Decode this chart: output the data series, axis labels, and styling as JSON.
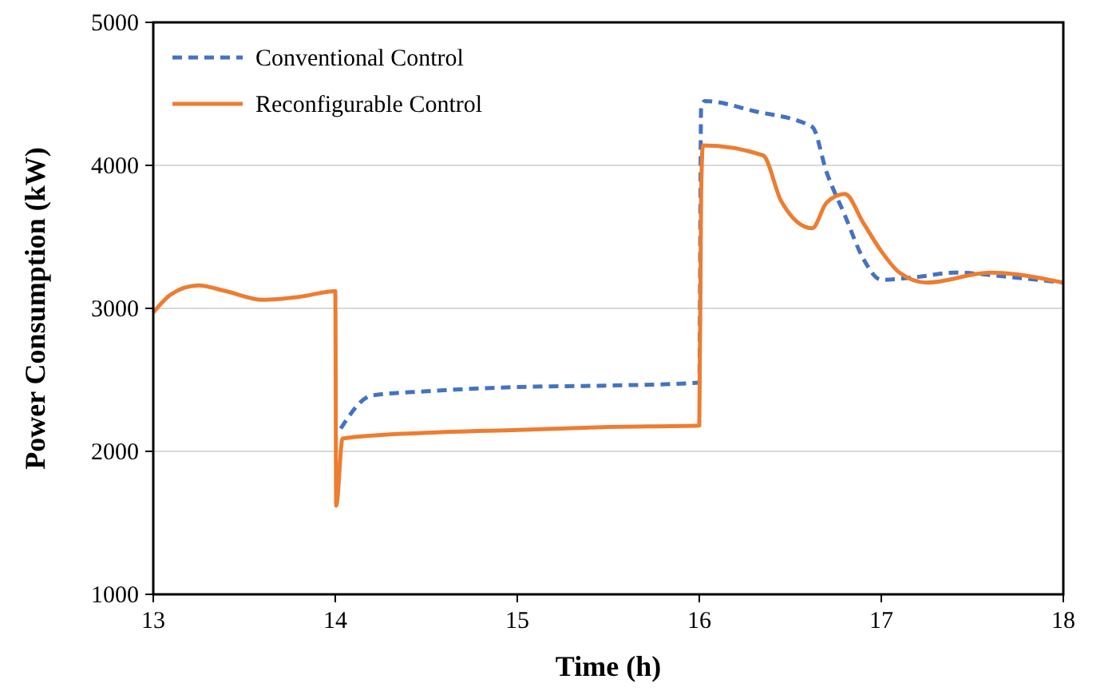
{
  "chart_data": {
    "type": "line",
    "xlabel": "Time (h)",
    "ylabel": "Power Consumption (kW)",
    "xlim": [
      13,
      18
    ],
    "xticks": [
      13,
      14,
      15,
      16,
      17,
      18
    ],
    "ylim": [
      1000,
      5000
    ],
    "yticks": [
      1000,
      2000,
      3000,
      4000,
      5000
    ],
    "grid": "y",
    "legend": "top left",
    "marker": "none",
    "series": [
      {
        "name": "Conventional Control",
        "color": "#4472c4",
        "line_style": "dashed",
        "x": [
          14.03,
          14.2,
          14.5,
          15,
          15.5,
          16,
          16.01,
          16.03,
          16.3,
          16.62,
          16.7,
          16.8,
          16.9,
          17,
          17.2,
          17.4,
          17.7,
          18
        ],
        "values": [
          2160,
          2390,
          2420,
          2450,
          2460,
          2480,
          4400,
          4450,
          4380,
          4270,
          3950,
          3650,
          3350,
          3200,
          3220,
          3250,
          3220,
          3180
        ]
      },
      {
        "name": "Reconfigurable Control",
        "color": "#ed7d31",
        "line_style": "solid",
        "x": [
          13,
          13.1,
          13.25,
          13.4,
          13.6,
          13.8,
          14,
          14.005,
          14.04,
          14.5,
          15,
          15.5,
          16,
          16.01,
          16.02,
          16.35,
          16.45,
          16.62,
          16.7,
          16.8,
          16.9,
          17,
          17.1,
          17.25,
          17.6,
          18
        ],
        "values": [
          2970,
          3100,
          3160,
          3120,
          3060,
          3080,
          3120,
          1620,
          2090,
          2130,
          2150,
          2170,
          2180,
          3800,
          4140,
          4070,
          3750,
          3560,
          3740,
          3800,
          3600,
          3400,
          3250,
          3180,
          3250,
          3180
        ]
      }
    ]
  }
}
